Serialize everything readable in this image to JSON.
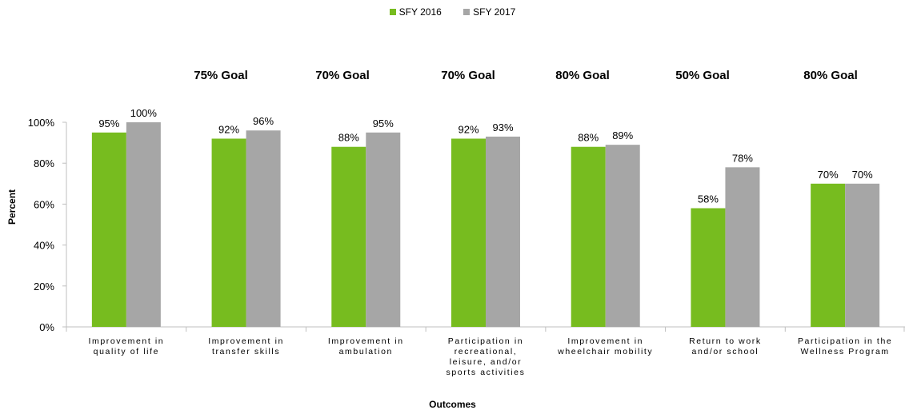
{
  "legend": [
    {
      "label": "SFY 2016",
      "color": "#77bc1f"
    },
    {
      "label": "SFY 2017",
      "color": "#a6a6a6"
    }
  ],
  "goals": [
    "",
    "75% Goal",
    "70% Goal",
    "70% Goal",
    "80% Goal",
    "50% Goal",
    "80% Goal"
  ],
  "chart_data": {
    "type": "bar",
    "title": "",
    "xlabel": "Outcomes",
    "ylabel": "Percent",
    "ylim": [
      0,
      100
    ],
    "yticks": [
      "0%",
      "20%",
      "40%",
      "60%",
      "80%",
      "100%"
    ],
    "grid": false,
    "legend_position": "top-center",
    "categories": [
      [
        "Improvement in",
        "quality of life"
      ],
      [
        "Improvement in",
        "transfer skills"
      ],
      [
        "Improvement in",
        "ambulation"
      ],
      [
        "Participation in",
        "recreational,",
        "leisure, and/or",
        "sports activities"
      ],
      [
        "Improvement in",
        "wheelchair mobility"
      ],
      [
        "Return to work",
        "and/or school"
      ],
      [
        "Participation in the",
        "Wellness Program"
      ]
    ],
    "series": [
      {
        "name": "SFY 2016",
        "color": "#77bc1f",
        "values": [
          95,
          92,
          88,
          92,
          88,
          58,
          70
        ],
        "labels": [
          "95%",
          "92%",
          "88%",
          "92%",
          "88%",
          "58%",
          "70%"
        ]
      },
      {
        "name": "SFY 2017",
        "color": "#a6a6a6",
        "values": [
          100,
          96,
          95,
          93,
          89,
          78,
          70
        ],
        "labels": [
          "100%",
          "96%",
          "95%",
          "93%",
          "89%",
          "78%",
          "70%"
        ]
      }
    ]
  }
}
